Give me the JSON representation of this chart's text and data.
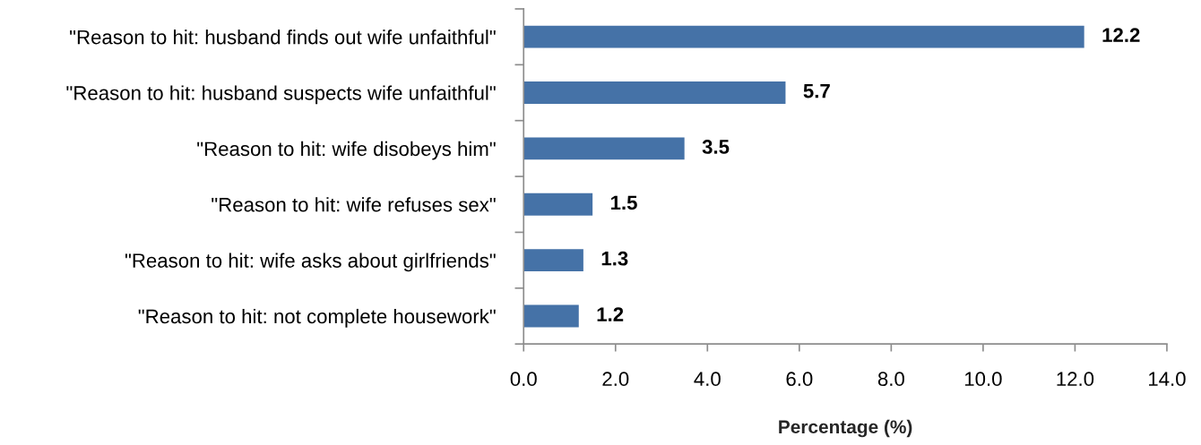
{
  "chart_data": {
    "type": "bar",
    "orientation": "horizontal",
    "xlabel": "Percentage (%)",
    "categories": [
      "\"Reason to hit: husband finds out wife unfaithful\"",
      "\"Reason to hit: husband suspects wife unfaithful\"",
      "\"Reason to hit: wife disobeys him\"",
      "\"Reason to hit: wife refuses sex\"",
      "\"Reason to hit: wife asks about girlfriends\"",
      "\"Reason to hit: not complete housework\""
    ],
    "values": [
      12.2,
      5.7,
      3.5,
      1.5,
      1.3,
      1.2
    ],
    "color": "#4572a7",
    "xlim": [
      0,
      14
    ],
    "xticks": [
      {
        "value": 0,
        "label": "0.0"
      },
      {
        "value": 2,
        "label": "2.0"
      },
      {
        "value": 4,
        "label": "4.0"
      },
      {
        "value": 6,
        "label": "6.0"
      },
      {
        "value": 8,
        "label": "8.0"
      },
      {
        "value": 10,
        "label": "10.0"
      },
      {
        "value": 12,
        "label": "12.0"
      },
      {
        "value": 14,
        "label": "14.0"
      }
    ],
    "data_labels": true,
    "grid": false
  }
}
